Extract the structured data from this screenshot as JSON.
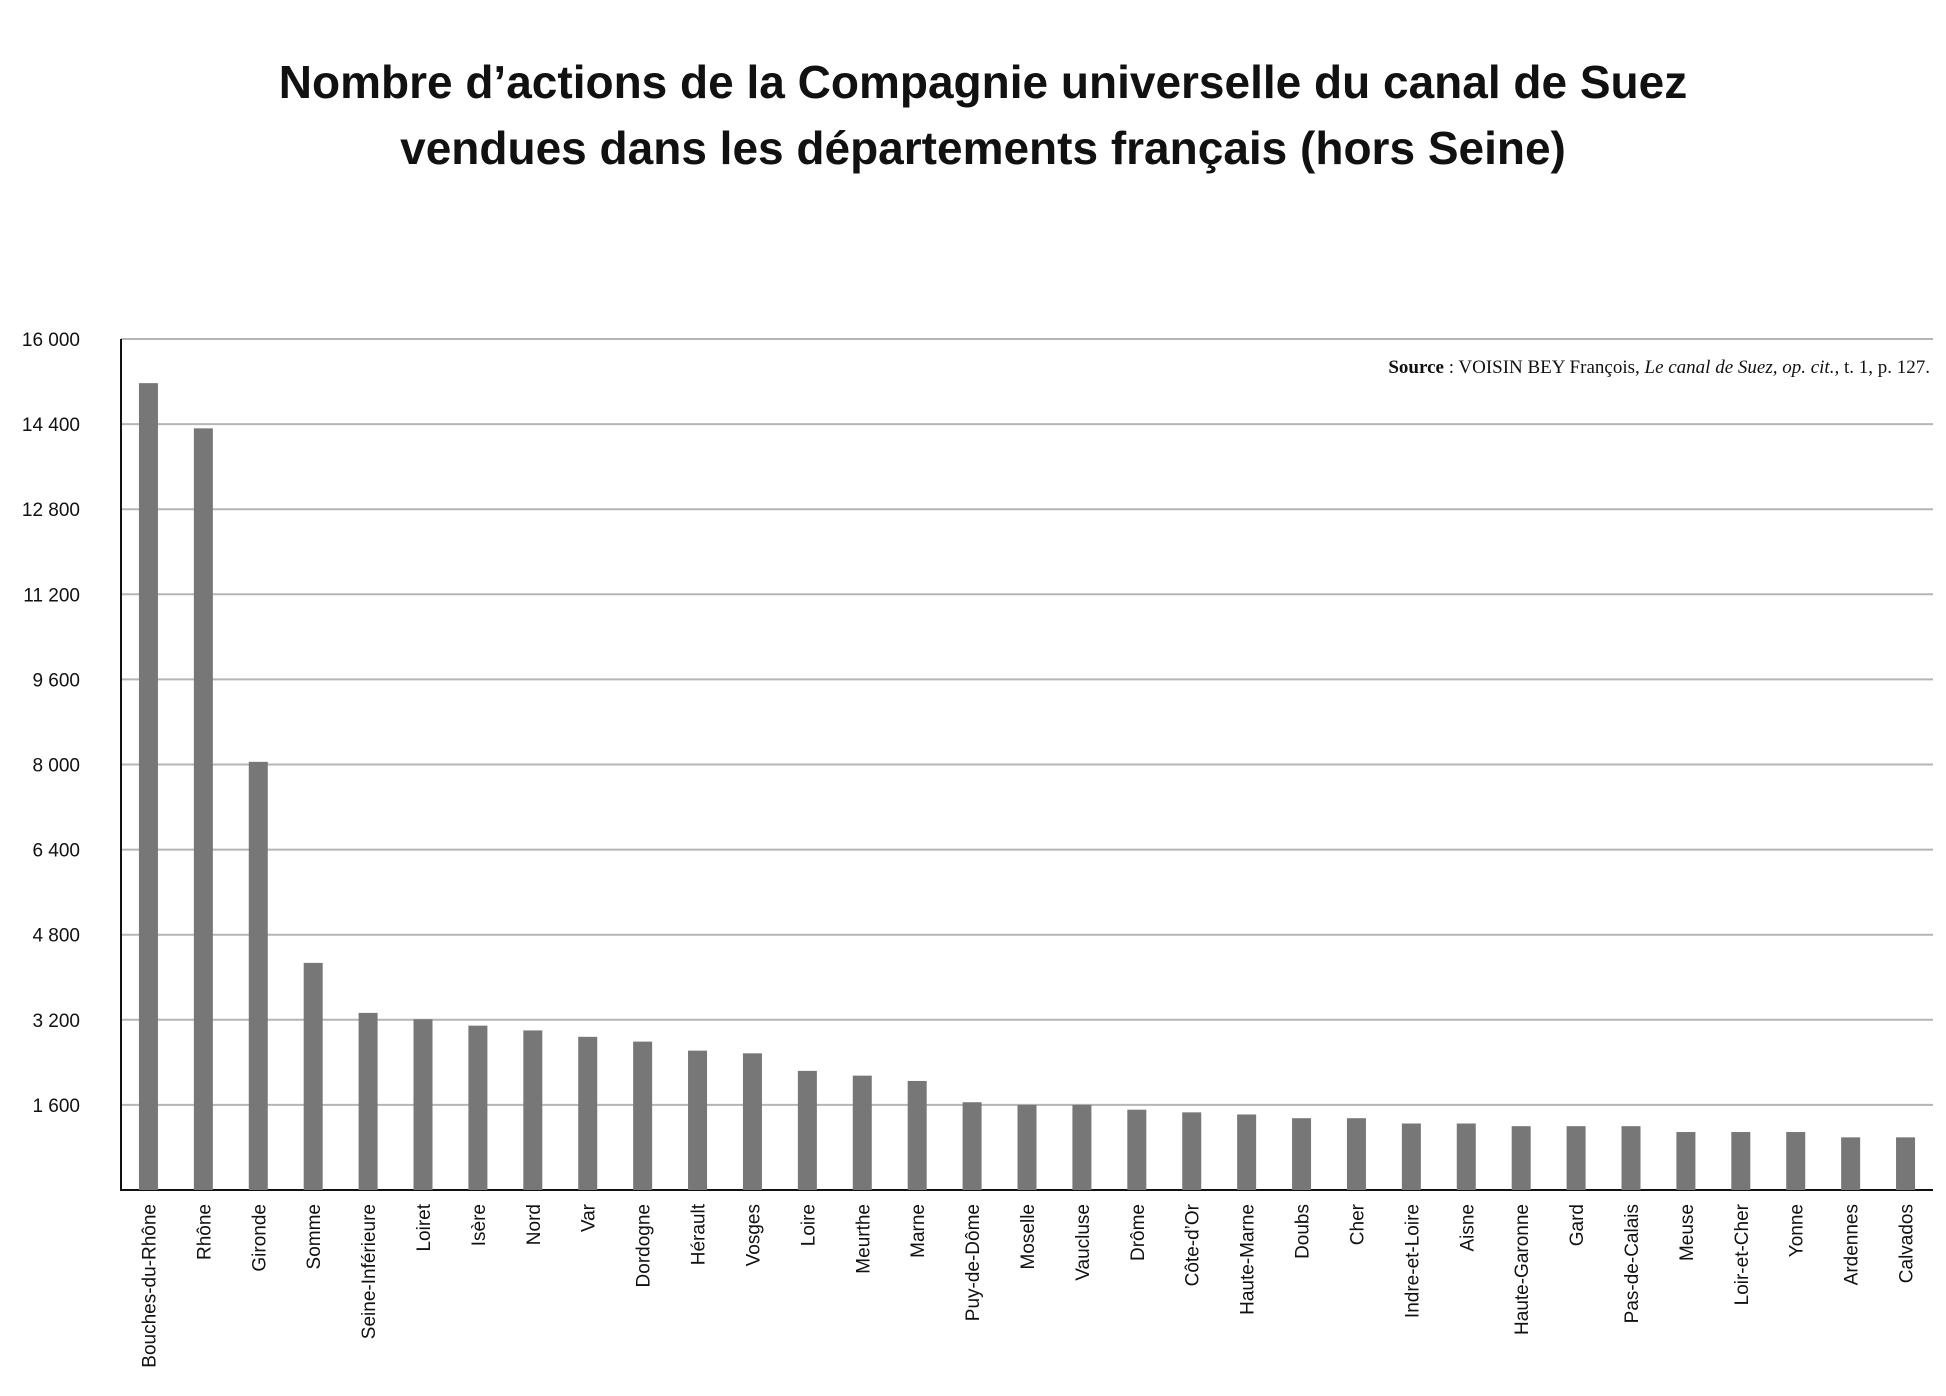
{
  "chart_data": {
    "type": "bar",
    "title": [
      "Nombre d’actions de la Compagnie universelle du canal de Suez",
      "vendues dans les départements français (hors Seine)"
    ],
    "source": {
      "label": "Source",
      "author": " : VOISIN BEY François, ",
      "work": "Le canal de Suez, op. cit.,",
      "pages": " t. 1, p. 127."
    },
    "categories": [
      "Bouches-du-Rhône",
      "Rhône",
      "Gironde",
      "Somme",
      "Seine-Inférieure",
      "Loiret",
      "Isère",
      "Nord",
      "Var",
      "Dordogne",
      "Hérault",
      "Vosges",
      "Loire",
      "Meurthe",
      "Marne",
      "Puy-de-Dôme",
      "Moselle",
      "Vaucluse",
      "Drôme",
      "Côte-d’Or",
      "Haute-Marne",
      "Doubs",
      "Cher",
      "Indre-et-Loire",
      "Aisne",
      "Haute-Garonne",
      "Gard",
      "Pas-de-Calais",
      "Meuse",
      "Loir-et-Cher",
      "Yonne",
      "Ardennes",
      "Calvados"
    ],
    "values": [
      15170,
      14320,
      8050,
      4270,
      3330,
      3210,
      3090,
      3000,
      2880,
      2790,
      2620,
      2570,
      2240,
      2150,
      2050,
      1650,
      1600,
      1600,
      1510,
      1460,
      1420,
      1350,
      1350,
      1250,
      1250,
      1200,
      1200,
      1200,
      1090,
      1090,
      1090,
      990,
      990
    ],
    "color": "#777777",
    "ylim": [
      0,
      16000
    ],
    "yticks": [
      {
        "value": 1600,
        "label": "1 600"
      },
      {
        "value": 3200,
        "label": "3 200"
      },
      {
        "value": 4800,
        "label": "4 800"
      },
      {
        "value": 6400,
        "label": "6 400"
      },
      {
        "value": 8000,
        "label": "8 000"
      },
      {
        "value": 9600,
        "label": "9 600"
      },
      {
        "value": 11200,
        "label": "11 200"
      },
      {
        "value": 12800,
        "label": "12 800"
      },
      {
        "value": 14400,
        "label": "14 400"
      },
      {
        "value": 16000,
        "label": "16 000"
      }
    ],
    "grid": true
  }
}
